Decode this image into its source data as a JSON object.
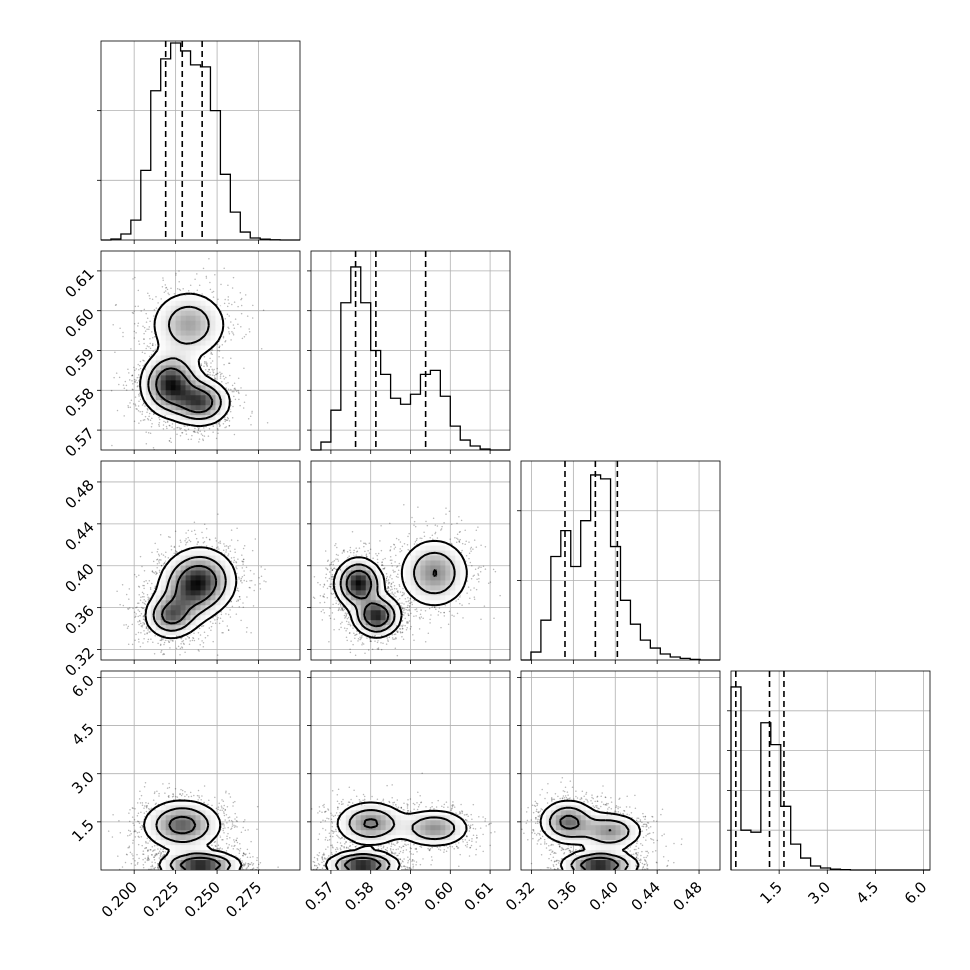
{
  "chart_data": {
    "type": "corner",
    "grid": true,
    "parameters": [
      {
        "range": [
          0.18,
          0.3
        ],
        "ticks": [
          0.2,
          0.225,
          0.25,
          0.275
        ],
        "tick_labels": [
          "0.200",
          "0.225",
          "0.250",
          "0.275"
        ]
      },
      {
        "range": [
          0.565,
          0.615
        ],
        "ticks": [
          0.57,
          0.58,
          0.59,
          0.6,
          0.61
        ],
        "tick_labels": [
          "0.57",
          "0.58",
          "0.59",
          "0.60",
          "0.61"
        ]
      },
      {
        "range": [
          0.31,
          0.5
        ],
        "ticks": [
          0.32,
          0.36,
          0.4,
          0.44,
          0.48
        ],
        "tick_labels": [
          "0.32",
          "0.36",
          "0.40",
          "0.44",
          "0.48"
        ]
      },
      {
        "range": [
          0.0,
          6.2
        ],
        "ticks": [
          1.5,
          3.0,
          4.5,
          6.0
        ],
        "tick_labels": [
          "1.5",
          "3.0",
          "4.5",
          "6.0"
        ],
        "y_ticks": [
          1.5,
          3.0,
          4.5,
          6.0
        ],
        "y_tick_labels": [
          "1.5",
          "3.0",
          "4.5",
          "6.0"
        ]
      }
    ],
    "histograms": [
      {
        "param": 0,
        "edges": [
          0.18,
          0.186,
          0.192,
          0.198,
          0.204,
          0.21,
          0.216,
          0.222,
          0.228,
          0.234,
          0.24,
          0.246,
          0.252,
          0.258,
          0.264,
          0.27,
          0.276,
          0.282,
          0.288,
          0.294,
          0.3
        ],
        "counts": [
          0,
          0.005,
          0.03,
          0.1,
          0.35,
          0.75,
          0.91,
          0.99,
          0.95,
          0.88,
          0.87,
          0.65,
          0.33,
          0.14,
          0.04,
          0.01,
          0.004,
          0.001,
          0,
          0
        ],
        "quantiles": [
          0.219,
          0.229,
          0.241
        ],
        "ylim": [
          0,
          1.0
        ],
        "y_ticks": [
          0.3,
          0.65
        ]
      },
      {
        "param": 1,
        "edges": [
          0.565,
          0.5675,
          0.57,
          0.5725,
          0.575,
          0.5775,
          0.58,
          0.5825,
          0.585,
          0.5875,
          0.59,
          0.5925,
          0.595,
          0.5975,
          0.6,
          0.6025,
          0.605,
          0.6075,
          0.61,
          0.6125,
          0.615
        ],
        "counts": [
          0,
          0.04,
          0.2,
          0.74,
          0.92,
          0.74,
          0.5,
          0.38,
          0.26,
          0.23,
          0.28,
          0.38,
          0.4,
          0.27,
          0.12,
          0.05,
          0.02,
          0.005,
          0,
          0
        ],
        "quantiles": [
          0.5762,
          0.5813,
          0.5938
        ],
        "ylim": [
          0,
          1.0
        ],
        "y_ticks": [
          0.1,
          0.3,
          0.5,
          0.7,
          0.9
        ]
      },
      {
        "param": 2,
        "edges": [
          0.31,
          0.3195,
          0.329,
          0.3385,
          0.348,
          0.3575,
          0.367,
          0.3765,
          0.386,
          0.3955,
          0.405,
          0.4145,
          0.424,
          0.4335,
          0.443,
          0.4525,
          0.462,
          0.4715,
          0.481,
          0.4905,
          0.5
        ],
        "counts": [
          0,
          0.04,
          0.2,
          0.52,
          0.65,
          0.47,
          0.7,
          0.93,
          0.91,
          0.57,
          0.3,
          0.18,
          0.1,
          0.06,
          0.03,
          0.015,
          0.008,
          0.003,
          0,
          0
        ],
        "quantiles": [
          0.352,
          0.381,
          0.402
        ],
        "ylim": [
          0,
          1.0
        ],
        "y_ticks": [
          0.4,
          0.75
        ]
      },
      {
        "param": 3,
        "edges": [
          0.0,
          0.31,
          0.62,
          0.93,
          1.24,
          1.55,
          1.86,
          2.17,
          2.48,
          2.79,
          3.1,
          3.41,
          3.72,
          4.03,
          4.34,
          4.65,
          4.96,
          5.27,
          5.58,
          5.89,
          6.2
        ],
        "counts": [
          0.92,
          0.2,
          0.19,
          0.74,
          0.63,
          0.32,
          0.13,
          0.06,
          0.02,
          0.01,
          0.004,
          0.002,
          0,
          0,
          0,
          0,
          0,
          0,
          0,
          0
        ],
        "quantiles": [
          0.15,
          1.2,
          1.65
        ],
        "ylim": [
          0,
          1.0
        ],
        "y_ticks": [
          0.2,
          0.4,
          0.6,
          0.8
        ]
      }
    ],
    "contour_panels": [
      {
        "x_param": 0,
        "y_param": 1,
        "blobs": [
          {
            "cx": 0.233,
            "cy": 0.5965,
            "sx": 0.012,
            "sy": 0.0045,
            "w": 0.55
          },
          {
            "cx": 0.222,
            "cy": 0.5815,
            "sx": 0.009,
            "sy": 0.004,
            "w": 1.0
          },
          {
            "cx": 0.24,
            "cy": 0.577,
            "sx": 0.009,
            "sy": 0.003,
            "w": 0.85
          }
        ]
      },
      {
        "x_param": 0,
        "y_param": 2,
        "blobs": [
          {
            "cx": 0.24,
            "cy": 0.386,
            "sx": 0.011,
            "sy": 0.016,
            "w": 1.0
          },
          {
            "cx": 0.222,
            "cy": 0.352,
            "sx": 0.008,
            "sy": 0.011,
            "w": 0.85
          },
          {
            "cx": 0.232,
            "cy": 0.372,
            "sx": 0.01,
            "sy": 0.016,
            "w": 0.45
          }
        ]
      },
      {
        "x_param": 1,
        "y_param": 2,
        "blobs": [
          {
            "cx": 0.577,
            "cy": 0.383,
            "sx": 0.003,
            "sy": 0.012,
            "w": 1.0
          },
          {
            "cx": 0.5815,
            "cy": 0.352,
            "sx": 0.003,
            "sy": 0.01,
            "w": 0.95
          },
          {
            "cx": 0.596,
            "cy": 0.393,
            "sx": 0.0045,
            "sy": 0.017,
            "w": 0.6
          }
        ]
      },
      {
        "x_param": 0,
        "y_param": 3,
        "blobs": [
          {
            "cx": 0.229,
            "cy": 1.4,
            "sx": 0.012,
            "sy": 0.4,
            "w": 0.75
          },
          {
            "cx": 0.24,
            "cy": 0.15,
            "sx": 0.012,
            "sy": 0.22,
            "w": 1.0
          }
        ]
      },
      {
        "x_param": 1,
        "y_param": 3,
        "blobs": [
          {
            "cx": 0.58,
            "cy": 1.45,
            "sx": 0.0045,
            "sy": 0.35,
            "w": 0.65
          },
          {
            "cx": 0.596,
            "cy": 1.3,
            "sx": 0.0045,
            "sy": 0.3,
            "w": 0.6
          },
          {
            "cx": 0.578,
            "cy": 0.15,
            "sx": 0.0045,
            "sy": 0.22,
            "w": 1.0
          }
        ]
      },
      {
        "x_param": 2,
        "y_param": 3,
        "blobs": [
          {
            "cx": 0.355,
            "cy": 1.5,
            "sx": 0.014,
            "sy": 0.35,
            "w": 0.7
          },
          {
            "cx": 0.395,
            "cy": 1.2,
            "sx": 0.016,
            "sy": 0.3,
            "w": 0.6
          },
          {
            "cx": 0.385,
            "cy": 0.15,
            "sx": 0.018,
            "sy": 0.22,
            "w": 1.0
          }
        ]
      }
    ]
  }
}
